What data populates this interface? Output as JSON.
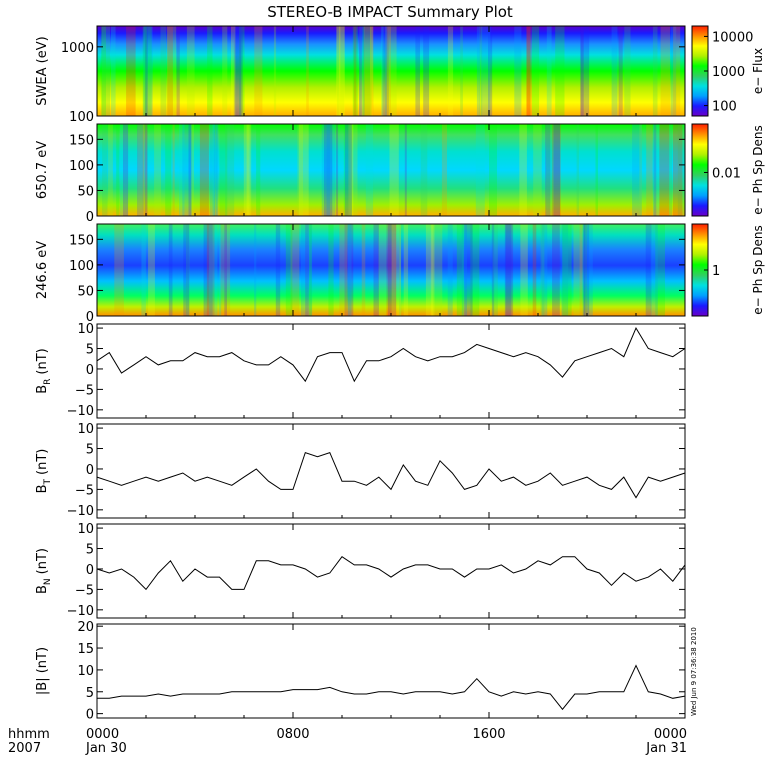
{
  "title": "STEREO-B IMPACT Summary Plot",
  "stamp": "Wed Jun  9 07:36:38 2010",
  "x_axis": {
    "label_top": "hhmm",
    "label_bottom": "2007",
    "ticks": [
      {
        "label": "0000",
        "sub": "Jan 30",
        "hour": 0
      },
      {
        "label": "0800",
        "sub": "",
        "hour": 8
      },
      {
        "label": "1600",
        "sub": "",
        "hour": 16
      },
      {
        "label": "0000",
        "sub": "Jan 31",
        "hour": 24
      }
    ]
  },
  "colors": {
    "frame": "#000000",
    "line": "#000000",
    "colormap": [
      "#6a00c8",
      "#1a1aff",
      "#00a0ff",
      "#00e0e0",
      "#30d060",
      "#00ff00",
      "#b0f000",
      "#ffff00",
      "#ff9000",
      "#ff2000"
    ]
  },
  "chart_data": [
    {
      "type": "heatmap",
      "ylabel": "SWEA (eV)",
      "ylim": [
        100,
        2000
      ],
      "yscale": "log",
      "y_ticks": [
        {
          "label": "1000",
          "value": 1000
        },
        {
          "label": "100",
          "value": 100
        }
      ],
      "colorbar": {
        "label": "e− Flux",
        "scale": "log",
        "ticks": [
          {
            "label": "10000",
            "value": 10000
          },
          {
            "label": "1000",
            "value": 1000
          },
          {
            "label": "100",
            "value": 100
          }
        ],
        "range": [
          50,
          20000
        ]
      }
    },
    {
      "type": "heatmap",
      "ylabel": "650.7 eV",
      "ylim": [
        0,
        180
      ],
      "y_ticks": [
        {
          "label": "150",
          "value": 150
        },
        {
          "label": "100",
          "value": 100
        },
        {
          "label": "50",
          "value": 50
        },
        {
          "label": "0",
          "value": 0
        }
      ],
      "colorbar": {
        "label": "e− Ph Sp Dens",
        "scale": "log",
        "ticks": [
          {
            "label": "0.01",
            "value": 0.01
          }
        ],
        "range": [
          0.002,
          0.06
        ]
      }
    },
    {
      "type": "heatmap",
      "ylabel": "246.6 eV",
      "ylim": [
        0,
        180
      ],
      "y_ticks": [
        {
          "label": "150",
          "value": 150
        },
        {
          "label": "100",
          "value": 100
        },
        {
          "label": "50",
          "value": 50
        },
        {
          "label": "0",
          "value": 0
        }
      ],
      "colorbar": {
        "label": "e− Ph Sp Dens",
        "scale": "log",
        "ticks": [
          {
            "label": "1",
            "value": 1
          }
        ],
        "range": [
          0.2,
          5
        ]
      }
    },
    {
      "type": "line",
      "ylabel": "B_R (nT)",
      "ylabel_main": "B",
      "ylabel_sub": "R",
      "ylabel_unit": "(nT)",
      "ylim": [
        -12,
        11
      ],
      "y_ticks": [
        {
          "label": "10",
          "value": 10
        },
        {
          "label": "5",
          "value": 5
        },
        {
          "label": "0",
          "value": 0
        },
        {
          "label": "−5",
          "value": -5
        },
        {
          "label": "−10",
          "value": -10
        }
      ],
      "x_hours": [
        0,
        0.5,
        1,
        1.5,
        2,
        2.5,
        3,
        3.5,
        4,
        4.5,
        5,
        5.5,
        6,
        6.5,
        7,
        7.5,
        8,
        8.5,
        9,
        9.5,
        10,
        10.5,
        11,
        11.5,
        12,
        12.5,
        13,
        13.5,
        14,
        14.5,
        15,
        15.5,
        16,
        16.5,
        17,
        17.5,
        18,
        18.5,
        19,
        19.5,
        20,
        20.5,
        21,
        21.5,
        22,
        22.5,
        23,
        23.5,
        24
      ],
      "values": [
        2,
        4,
        -1,
        1,
        3,
        1,
        2,
        2,
        4,
        3,
        3,
        4,
        2,
        1,
        1,
        3,
        1,
        -3,
        3,
        4,
        4,
        -3,
        2,
        2,
        3,
        5,
        3,
        2,
        3,
        3,
        4,
        6,
        5,
        4,
        3,
        4,
        3,
        1,
        -2,
        2,
        3,
        4,
        5,
        3,
        10,
        5,
        4,
        3,
        5
      ]
    },
    {
      "type": "line",
      "ylabel": "B_T (nT)",
      "ylabel_main": "B",
      "ylabel_sub": "T",
      "ylabel_unit": "(nT)",
      "ylim": [
        -12,
        11
      ],
      "y_ticks": [
        {
          "label": "10",
          "value": 10
        },
        {
          "label": "5",
          "value": 5
        },
        {
          "label": "0",
          "value": 0
        },
        {
          "label": "−5",
          "value": -5
        },
        {
          "label": "−10",
          "value": -10
        }
      ],
      "x_hours": [
        0,
        0.5,
        1,
        1.5,
        2,
        2.5,
        3,
        3.5,
        4,
        4.5,
        5,
        5.5,
        6,
        6.5,
        7,
        7.5,
        8,
        8.5,
        9,
        9.5,
        10,
        10.5,
        11,
        11.5,
        12,
        12.5,
        13,
        13.5,
        14,
        14.5,
        15,
        15.5,
        16,
        16.5,
        17,
        17.5,
        18,
        18.5,
        19,
        19.5,
        20,
        20.5,
        21,
        21.5,
        22,
        22.5,
        23,
        23.5,
        24
      ],
      "values": [
        -2,
        -3,
        -4,
        -3,
        -2,
        -3,
        -2,
        -1,
        -3,
        -2,
        -3,
        -4,
        -2,
        0,
        -3,
        -5,
        -5,
        4,
        3,
        4,
        -3,
        -3,
        -4,
        -2,
        -5,
        1,
        -3,
        -4,
        2,
        -1,
        -5,
        -4,
        0,
        -3,
        -2,
        -4,
        -3,
        -1,
        -4,
        -3,
        -2,
        -4,
        -5,
        -2,
        -7,
        -2,
        -3,
        -2,
        -1
      ]
    },
    {
      "type": "line",
      "ylabel": "B_N (nT)",
      "ylabel_main": "B",
      "ylabel_sub": "N",
      "ylabel_unit": "(nT)",
      "ylim": [
        -12,
        11
      ],
      "y_ticks": [
        {
          "label": "10",
          "value": 10
        },
        {
          "label": "5",
          "value": 5
        },
        {
          "label": "0",
          "value": 0
        },
        {
          "label": "−5",
          "value": -5
        },
        {
          "label": "−10",
          "value": -10
        }
      ],
      "x_hours": [
        0,
        0.5,
        1,
        1.5,
        2,
        2.5,
        3,
        3.5,
        4,
        4.5,
        5,
        5.5,
        6,
        6.5,
        7,
        7.5,
        8,
        8.5,
        9,
        9.5,
        10,
        10.5,
        11,
        11.5,
        12,
        12.5,
        13,
        13.5,
        14,
        14.5,
        15,
        15.5,
        16,
        16.5,
        17,
        17.5,
        18,
        18.5,
        19,
        19.5,
        20,
        20.5,
        21,
        21.5,
        22,
        22.5,
        23,
        23.5,
        24
      ],
      "values": [
        0,
        -1,
        0,
        -2,
        -5,
        -1,
        2,
        -3,
        0,
        -2,
        -2,
        -5,
        -5,
        2,
        2,
        1,
        1,
        0,
        -2,
        -1,
        3,
        1,
        1,
        0,
        -2,
        0,
        1,
        1,
        0,
        0,
        -2,
        0,
        0,
        1,
        -1,
        0,
        2,
        1,
        3,
        3,
        0,
        -1,
        -4,
        -1,
        -3,
        -2,
        0,
        -3,
        1
      ]
    },
    {
      "type": "line",
      "ylabel": "|B| (nT)",
      "ylim": [
        -1,
        20.5
      ],
      "y_ticks": [
        {
          "label": "20",
          "value": 20
        },
        {
          "label": "15",
          "value": 15
        },
        {
          "label": "10",
          "value": 10
        },
        {
          "label": "5",
          "value": 5
        },
        {
          "label": "0",
          "value": 0
        }
      ],
      "x_hours": [
        0,
        0.5,
        1,
        1.5,
        2,
        2.5,
        3,
        3.5,
        4,
        4.5,
        5,
        5.5,
        6,
        6.5,
        7,
        7.5,
        8,
        8.5,
        9,
        9.5,
        10,
        10.5,
        11,
        11.5,
        12,
        12.5,
        13,
        13.5,
        14,
        14.5,
        15,
        15.5,
        16,
        16.5,
        17,
        17.5,
        18,
        18.5,
        19,
        19.5,
        20,
        20.5,
        21,
        21.5,
        22,
        22.5,
        23,
        23.5,
        24
      ],
      "values": [
        3.5,
        3.5,
        4,
        4,
        4,
        4.5,
        4,
        4.5,
        4.5,
        4.5,
        4.5,
        5,
        5,
        5,
        5,
        5,
        5.5,
        5.5,
        5.5,
        6,
        5,
        4.5,
        4.5,
        5,
        5,
        4.5,
        5,
        5,
        5,
        4.5,
        5,
        8,
        5,
        4,
        5,
        4.5,
        5,
        4.5,
        1,
        4.5,
        4.5,
        5,
        5,
        5,
        11,
        5,
        4.5,
        3.5,
        4
      ]
    }
  ]
}
